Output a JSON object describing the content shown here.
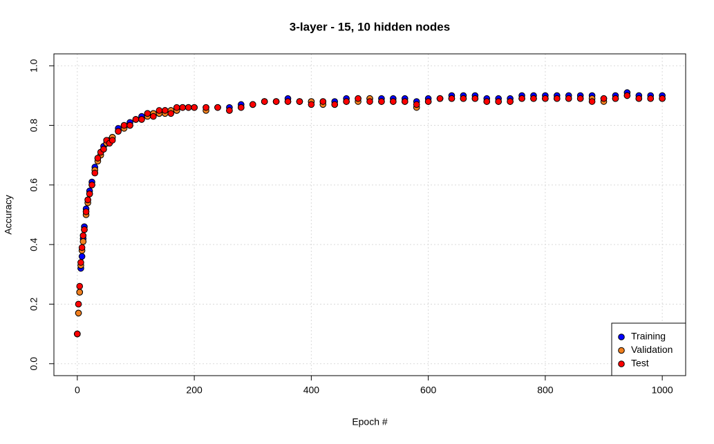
{
  "chart_data": {
    "type": "scatter",
    "title": "3-layer - 15, 10 hidden nodes",
    "x_label": "Epoch #",
    "y_label": "Accuracy",
    "xlim": [
      -40,
      1040
    ],
    "ylim": [
      -0.04,
      1.04
    ],
    "xticks": [
      0,
      200,
      400,
      600,
      800,
      1000
    ],
    "yticks": [
      {
        "value": 0,
        "label": "0.0"
      },
      0.2,
      0.4,
      0.6,
      0.8,
      {
        "value": 1,
        "label": "1.0"
      }
    ],
    "grid": true,
    "legend": "bottom-right",
    "x": [
      0,
      2,
      4,
      6,
      8,
      10,
      12,
      15,
      18,
      21,
      25,
      30,
      35,
      40,
      45,
      50,
      55,
      60,
      70,
      80,
      90,
      100,
      110,
      120,
      130,
      140,
      150,
      160,
      170,
      180,
      190,
      200,
      220,
      240,
      260,
      280,
      300,
      320,
      340,
      360,
      380,
      400,
      420,
      440,
      460,
      480,
      500,
      520,
      540,
      560,
      580,
      600,
      620,
      640,
      660,
      680,
      700,
      720,
      740,
      760,
      780,
      800,
      820,
      840,
      860,
      880,
      900,
      920,
      940,
      960,
      980,
      1000
    ],
    "series": [
      {
        "name": "Training",
        "color": "#0000ff",
        "values": [
          0.1,
          0.17,
          0.24,
          0.32,
          0.36,
          0.42,
          0.46,
          0.52,
          0.55,
          0.58,
          0.61,
          0.66,
          0.69,
          0.71,
          0.73,
          0.74,
          0.75,
          0.76,
          0.79,
          0.8,
          0.81,
          0.82,
          0.83,
          0.84,
          0.84,
          0.84,
          0.85,
          0.85,
          0.85,
          0.86,
          0.86,
          0.86,
          0.86,
          0.86,
          0.86,
          0.87,
          0.87,
          0.88,
          0.88,
          0.89,
          0.88,
          0.88,
          0.88,
          0.88,
          0.89,
          0.89,
          0.89,
          0.89,
          0.89,
          0.89,
          0.88,
          0.89,
          0.89,
          0.9,
          0.9,
          0.9,
          0.89,
          0.89,
          0.89,
          0.9,
          0.9,
          0.9,
          0.9,
          0.9,
          0.9,
          0.9,
          0.89,
          0.9,
          0.91,
          0.9,
          0.9,
          0.9
        ]
      },
      {
        "name": "Validation",
        "color": "#f07f1e",
        "values": [
          0.1,
          0.17,
          0.24,
          0.33,
          0.38,
          0.41,
          0.45,
          0.5,
          0.54,
          0.57,
          0.6,
          0.65,
          0.68,
          0.7,
          0.72,
          0.74,
          0.75,
          0.76,
          0.78,
          0.79,
          0.8,
          0.82,
          0.82,
          0.83,
          0.84,
          0.84,
          0.84,
          0.85,
          0.85,
          0.86,
          0.86,
          0.86,
          0.85,
          0.86,
          0.85,
          0.86,
          0.87,
          0.88,
          0.88,
          0.88,
          0.88,
          0.88,
          0.87,
          0.87,
          0.88,
          0.88,
          0.89,
          0.88,
          0.88,
          0.88,
          0.86,
          0.88,
          0.89,
          0.89,
          0.89,
          0.89,
          0.88,
          0.88,
          0.88,
          0.89,
          0.89,
          0.89,
          0.89,
          0.89,
          0.89,
          0.89,
          0.88,
          0.89,
          0.9,
          0.89,
          0.89,
          0.89
        ]
      },
      {
        "name": "Test",
        "color": "#ff0000",
        "values": [
          0.1,
          0.2,
          0.26,
          0.34,
          0.39,
          0.43,
          0.45,
          0.51,
          0.55,
          0.57,
          0.6,
          0.64,
          0.69,
          0.71,
          0.72,
          0.75,
          0.74,
          0.75,
          0.78,
          0.8,
          0.8,
          0.82,
          0.82,
          0.84,
          0.83,
          0.85,
          0.85,
          0.84,
          0.86,
          0.86,
          0.86,
          0.86,
          0.86,
          0.86,
          0.85,
          0.86,
          0.87,
          0.88,
          0.88,
          0.88,
          0.88,
          0.87,
          0.88,
          0.87,
          0.88,
          0.89,
          0.88,
          0.88,
          0.88,
          0.88,
          0.87,
          0.88,
          0.89,
          0.89,
          0.89,
          0.89,
          0.88,
          0.88,
          0.88,
          0.89,
          0.89,
          0.89,
          0.89,
          0.89,
          0.89,
          0.88,
          0.89,
          0.89,
          0.9,
          0.89,
          0.89,
          0.89
        ]
      }
    ]
  }
}
